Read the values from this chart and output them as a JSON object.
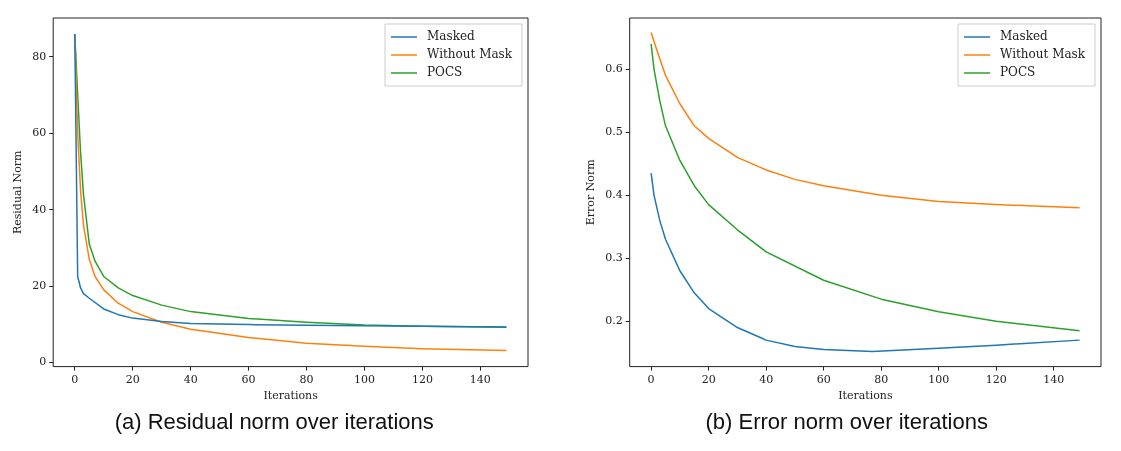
{
  "chart_data": [
    {
      "type": "line",
      "title": "(a) Residual norm over iterations",
      "xlabel": "Iterations",
      "ylabel": "Residual Norm",
      "xlim": [
        -7.45,
        156.45
      ],
      "ylim": [
        -1.1,
        90.2
      ],
      "xticks": [
        0,
        20,
        40,
        60,
        80,
        100,
        120,
        140
      ],
      "yticks": [
        0,
        20,
        40,
        60,
        80
      ],
      "grid": false,
      "legend": "top right",
      "series": [
        {
          "name": "Masked",
          "color": "#1f77b4",
          "x": [
            0,
            1,
            2,
            3,
            5,
            10,
            15,
            20,
            30,
            40,
            60,
            80,
            100,
            120,
            149
          ],
          "values": [
            86,
            22.5,
            19.5,
            18,
            16.8,
            14,
            12.5,
            11.6,
            10.7,
            10.2,
            9.9,
            9.7,
            9.6,
            9.5,
            9.3
          ]
        },
        {
          "name": "Without Mask",
          "color": "#ff7f0e",
          "x": [
            0,
            1,
            2,
            3,
            5,
            7,
            10,
            15,
            20,
            30,
            40,
            60,
            80,
            100,
            120,
            149
          ],
          "values": [
            86,
            60,
            45,
            36,
            27,
            22.5,
            19,
            15.5,
            13.3,
            10.5,
            8.7,
            6.5,
            5,
            4.2,
            3.6,
            3.1
          ]
        },
        {
          "name": "POCS",
          "color": "#2ca02c",
          "x": [
            0,
            1,
            2,
            3,
            5,
            7,
            10,
            15,
            20,
            30,
            40,
            60,
            80,
            100,
            120,
            149
          ],
          "values": [
            86,
            70,
            55,
            44,
            31,
            26.5,
            22.5,
            19.5,
            17.5,
            15,
            13.3,
            11.5,
            10.5,
            9.8,
            9.5,
            9.2
          ]
        }
      ]
    },
    {
      "type": "line",
      "title": "(b) Error norm over iterations",
      "xlabel": "Iterations",
      "ylabel": "Error Norm",
      "xlim": [
        -7.45,
        156.45
      ],
      "ylim": [
        0.128,
        0.681
      ],
      "xticks": [
        0,
        20,
        40,
        60,
        80,
        100,
        120,
        140
      ],
      "yticks": [
        0.2,
        0.3,
        0.4,
        0.5,
        0.6
      ],
      "grid": false,
      "legend": "top right",
      "series": [
        {
          "name": "Masked",
          "color": "#1f77b4",
          "x": [
            0,
            1,
            3,
            5,
            10,
            15,
            20,
            30,
            40,
            50,
            60,
            77,
            100,
            120,
            149
          ],
          "values": [
            0.435,
            0.4,
            0.36,
            0.33,
            0.28,
            0.245,
            0.22,
            0.19,
            0.17,
            0.16,
            0.155,
            0.152,
            0.157,
            0.162,
            0.17
          ]
        },
        {
          "name": "Without Mask",
          "color": "#ff7f0e",
          "x": [
            0,
            2,
            5,
            10,
            15,
            20,
            30,
            40,
            50,
            60,
            80,
            100,
            120,
            149
          ],
          "values": [
            0.658,
            0.63,
            0.59,
            0.545,
            0.51,
            0.49,
            0.46,
            0.44,
            0.425,
            0.415,
            0.4,
            0.39,
            0.385,
            0.38
          ]
        },
        {
          "name": "POCS",
          "color": "#2ca02c",
          "x": [
            0,
            1,
            3,
            5,
            10,
            15,
            20,
            30,
            40,
            60,
            80,
            100,
            120,
            149
          ],
          "values": [
            0.64,
            0.6,
            0.55,
            0.51,
            0.455,
            0.415,
            0.385,
            0.345,
            0.31,
            0.265,
            0.235,
            0.215,
            0.2,
            0.185
          ]
        }
      ]
    }
  ]
}
